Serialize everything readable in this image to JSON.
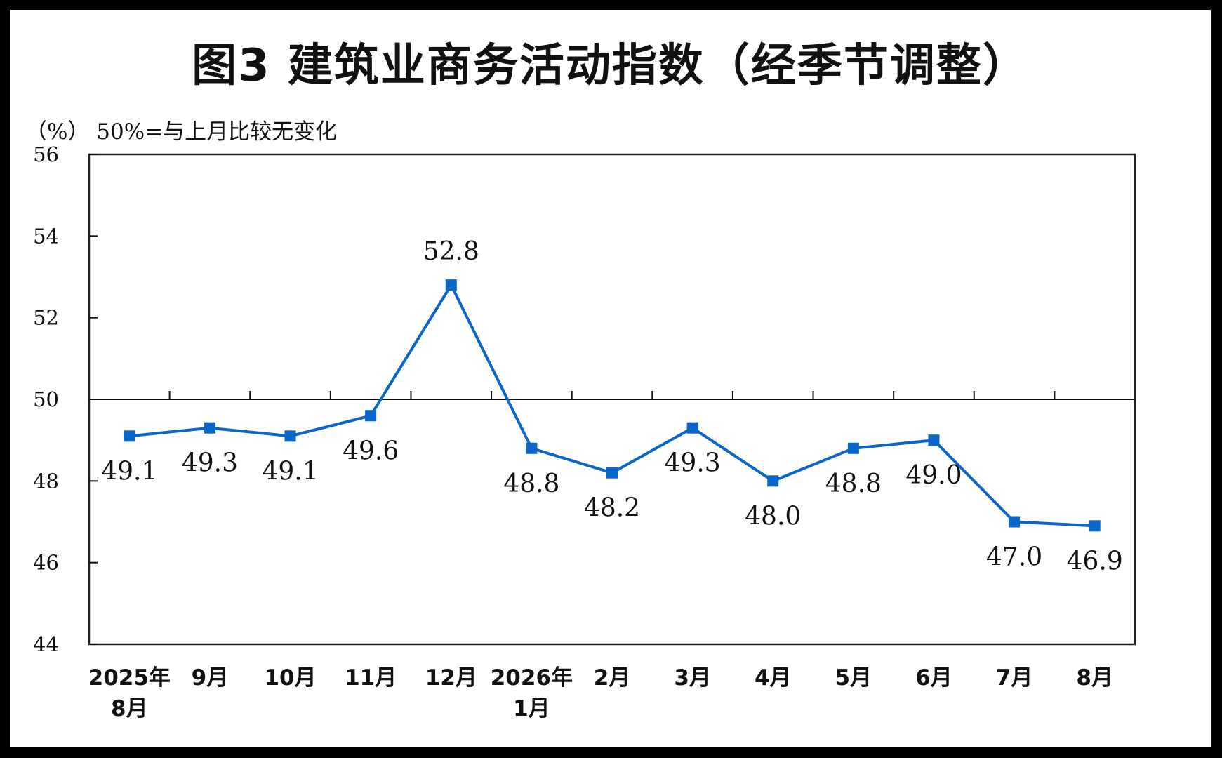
{
  "chart_data": {
    "type": "line",
    "title": "图3  建筑业商务活动指数（经季节调整）",
    "unit_note": "（%） 50%=与上月比较无变化",
    "categories": [
      [
        "2025年",
        "8月"
      ],
      [
        "9月"
      ],
      [
        "10月"
      ],
      [
        "11月"
      ],
      [
        "12月"
      ],
      [
        "2026年",
        "1月"
      ],
      [
        "2月"
      ],
      [
        "3月"
      ],
      [
        "4月"
      ],
      [
        "5月"
      ],
      [
        "6月"
      ],
      [
        "7月"
      ],
      [
        "8月"
      ]
    ],
    "series": [
      {
        "values": [
          49.1,
          49.3,
          49.1,
          49.6,
          52.8,
          48.8,
          48.2,
          49.3,
          48.0,
          48.8,
          49.0,
          47.0,
          46.9
        ],
        "labels": [
          "49.1",
          "49.3",
          "49.1",
          "49.6",
          "52.8",
          "48.8",
          "48.2",
          "49.3",
          "48.0",
          "48.8",
          "49.0",
          "47.0",
          "46.9"
        ],
        "color": "#0a66c8"
      }
    ],
    "ylim": [
      44,
      56
    ],
    "yticks": [
      "44",
      "46",
      "48",
      "50",
      "52",
      "54",
      "56"
    ],
    "reference_line": 50,
    "grid": false,
    "legend": "none"
  }
}
